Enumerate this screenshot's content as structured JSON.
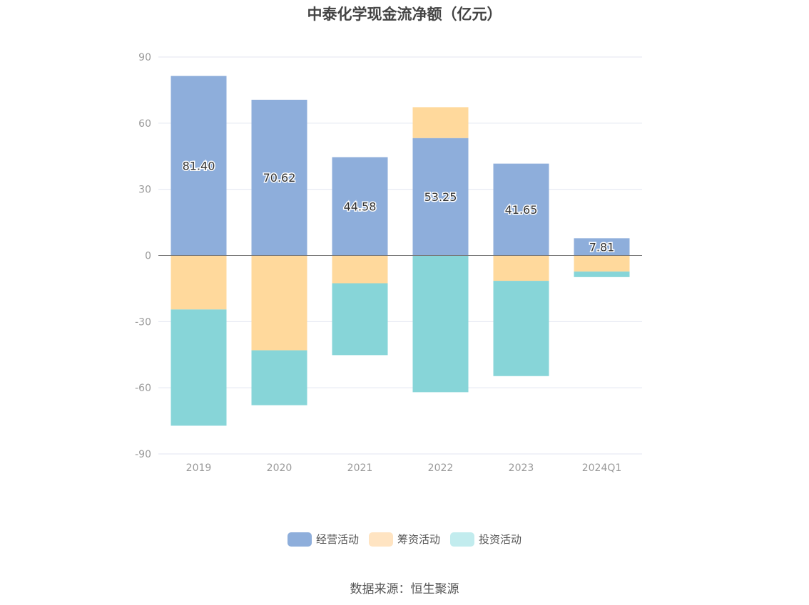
{
  "chart_data": {
    "type": "bar",
    "stacked": true,
    "title": "中泰化学现金流净额（亿元）",
    "xlabel": "",
    "ylabel": "",
    "categories": [
      "2019",
      "2020",
      "2021",
      "2022",
      "2023",
      "2024Q1"
    ],
    "ylim": [
      -90,
      90
    ],
    "yticks": [
      90,
      60,
      30,
      0,
      -30,
      -60,
      -90
    ],
    "grid": true,
    "legend_position": "bottom",
    "series": [
      {
        "name": "经营活动",
        "color": "#8eaedb",
        "values": [
          81.4,
          70.62,
          44.58,
          53.25,
          41.65,
          7.81
        ],
        "labels": [
          "81.40",
          "70.62",
          "44.58",
          "53.25",
          "41.65",
          "7.81"
        ]
      },
      {
        "name": "筹资活动",
        "color": "#ffd99c",
        "values": [
          -24.5,
          -43.0,
          -12.6,
          14.0,
          -11.5,
          -7.3
        ]
      },
      {
        "name": "投资活动",
        "color": "#87d5d8",
        "values": [
          -52.7,
          -24.9,
          -32.6,
          -62.0,
          -43.2,
          -2.5
        ]
      }
    ]
  },
  "legend": {
    "items": [
      {
        "label": "经营活动",
        "color": "#8eaedb"
      },
      {
        "label": "筹资活动",
        "color": "#ffe4c2"
      },
      {
        "label": "投资活动",
        "color": "#c2ecee"
      }
    ]
  },
  "source": "数据来源：恒生聚源"
}
